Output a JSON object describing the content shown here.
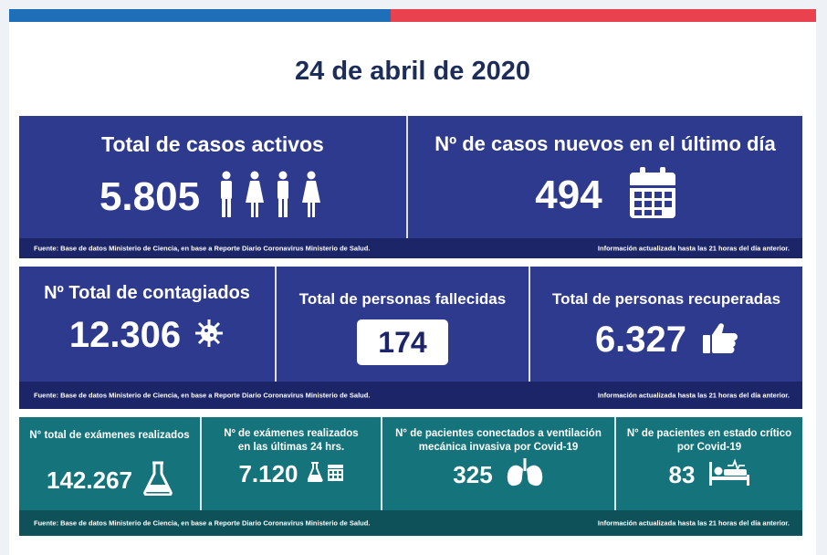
{
  "date": "24 de abril de 2020",
  "row1": {
    "active": {
      "title": "Total de casos activos",
      "value": "5.805",
      "icon": "people-icon"
    },
    "new": {
      "title": "Nº de casos nuevos en el último día",
      "value": "494",
      "icon": "calendar-icon"
    },
    "source": "Fuente: Base de datos Ministerio de Ciencia, en base a Reporte Diario Coronavirus Ministerio de Salud.",
    "updated": "Información actualizada hasta las 21 horas  del día anterior."
  },
  "row2": {
    "infected": {
      "title": "Nº Total de contagiados",
      "value": "12.306",
      "icon": "virus-icon"
    },
    "deceased": {
      "title": "Total de personas fallecidas",
      "value": "174"
    },
    "recovered": {
      "title": "Total de personas recuperadas",
      "value": "6.327",
      "icon": "thumbs-up-icon"
    },
    "source": "Fuente: Base de datos Ministerio de Ciencia, en base a Reporte Diario Coronavirus Ministerio de Salud.",
    "updated": "Información actualizada hasta las 21 horas  del día anterior."
  },
  "row3": {
    "exams": {
      "title": "N° total de exámenes realizados",
      "value": "142.267",
      "icon": "flask-icon"
    },
    "exams24": {
      "title_1": "Nº de exámenes realizados",
      "title_2": "en las últimas 24 hrs.",
      "value": "7.120",
      "icon": "flask-calendar-icon"
    },
    "ventilation": {
      "title_1": "N° de pacientes conectados a ventilación",
      "title_2": "mecánica invasiva por Covid-19",
      "value": "325",
      "icon": "lungs-icon"
    },
    "critical": {
      "title_1": "N° de pacientes en estado crítico",
      "title_2": "por Covid-19",
      "value": "83",
      "icon": "hospital-bed-icon"
    },
    "source": "Fuente: Base de datos Ministerio de Ciencia, en base a Reporte Diario Coronavirus Ministerio de Salud.",
    "updated": "Información actualizada hasta las 21 horas  del día anterior."
  }
}
